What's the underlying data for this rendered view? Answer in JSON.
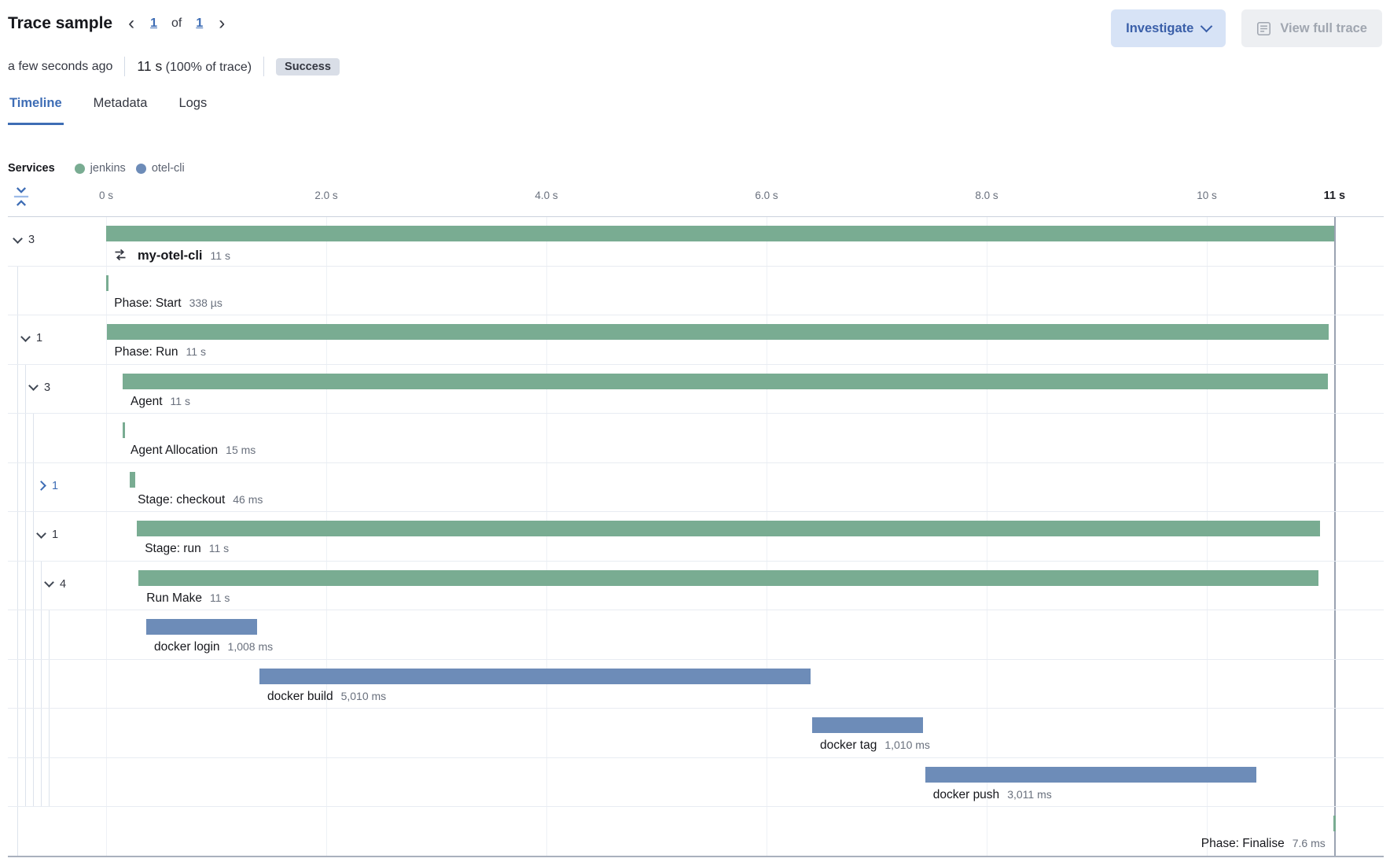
{
  "header": {
    "title": "Trace sample",
    "prev_icon": "‹",
    "page": "1",
    "of_label": "of",
    "total": "1",
    "next_icon": "›",
    "investigate_label": "Investigate",
    "view_full_trace_label": "View full trace"
  },
  "summary": {
    "time_ago": "a few seconds ago",
    "duration_value": "11 s",
    "duration_rest": "(100% of trace)",
    "status": "Success"
  },
  "tabs": [
    {
      "label": "Timeline",
      "active": true
    },
    {
      "label": "Metadata",
      "active": false
    },
    {
      "label": "Logs",
      "active": false
    }
  ],
  "legend": {
    "title": "Services",
    "items": [
      {
        "label": "jenkins",
        "color": "#79ac92"
      },
      {
        "label": "otel-cli",
        "color": "#6d8cb8"
      }
    ]
  },
  "chart_data": {
    "type": "waterfall-timeline",
    "time_unit": "s",
    "axis_ticks": [
      {
        "t": 0,
        "label": "0 s"
      },
      {
        "t": 2,
        "label": "2.0 s"
      },
      {
        "t": 4,
        "label": "4.0 s"
      },
      {
        "t": 6,
        "label": "6.0 s"
      },
      {
        "t": 8,
        "label": "8.0 s"
      },
      {
        "t": 10,
        "label": "10 s"
      },
      {
        "t": 11.16,
        "label": "11 s",
        "emphasis": true
      }
    ],
    "gridline_ts": [
      0,
      2,
      4,
      6,
      8,
      10
    ],
    "trace_end_t": 11.16,
    "spans": [
      {
        "name": "my-otel-cli",
        "duration_label": "11 s",
        "start": 0,
        "duration": 11.16,
        "service": "jenkins",
        "depth": 1,
        "toggle": "expanded",
        "children_count": "3",
        "emphasis": true,
        "icon": "transaction"
      },
      {
        "name": "Phase: Start",
        "duration_label": "338 µs",
        "start": 0.002,
        "duration": 0.000338,
        "service": "jenkins",
        "depth": 2
      },
      {
        "name": "Phase: Run",
        "duration_label": "11 s",
        "start": 0.004,
        "duration": 11.1,
        "service": "jenkins",
        "depth": 2,
        "toggle": "expanded",
        "children_count": "1"
      },
      {
        "name": "Agent",
        "duration_label": "11 s",
        "start": 0.15,
        "duration": 10.95,
        "service": "jenkins",
        "depth": 3,
        "toggle": "expanded",
        "children_count": "3"
      },
      {
        "name": "Agent Allocation",
        "duration_label": "15 ms",
        "start": 0.15,
        "duration": 0.015,
        "service": "jenkins",
        "depth": 4
      },
      {
        "name": "Stage: checkout",
        "duration_label": "46 ms",
        "start": 0.215,
        "duration": 0.046,
        "service": "jenkins",
        "depth": 4,
        "toggle": "collapsed",
        "children_count": "1"
      },
      {
        "name": "Stage: run",
        "duration_label": "11 s",
        "start": 0.28,
        "duration": 10.75,
        "service": "jenkins",
        "depth": 4,
        "toggle": "expanded",
        "children_count": "1"
      },
      {
        "name": "Run Make",
        "duration_label": "11 s",
        "start": 0.295,
        "duration": 10.72,
        "service": "jenkins",
        "depth": 5,
        "toggle": "expanded",
        "children_count": "4"
      },
      {
        "name": "docker login",
        "duration_label": "1,008 ms",
        "start": 0.364,
        "duration": 1.008,
        "service": "otel-cli",
        "depth": 6
      },
      {
        "name": "docker build",
        "duration_label": "5,010 ms",
        "start": 1.393,
        "duration": 5.01,
        "service": "otel-cli",
        "depth": 6
      },
      {
        "name": "docker tag",
        "duration_label": "1,010 ms",
        "start": 6.414,
        "duration": 1.01,
        "service": "otel-cli",
        "depth": 6
      },
      {
        "name": "docker push",
        "duration_label": "3,011 ms",
        "start": 7.441,
        "duration": 3.011,
        "service": "otel-cli",
        "depth": 6
      },
      {
        "name": "Phase: Finalise",
        "duration_label": "7.6 ms",
        "start": 11.148,
        "duration": 0.0076,
        "service": "jenkins",
        "depth": 2,
        "label_side": "left"
      }
    ]
  }
}
